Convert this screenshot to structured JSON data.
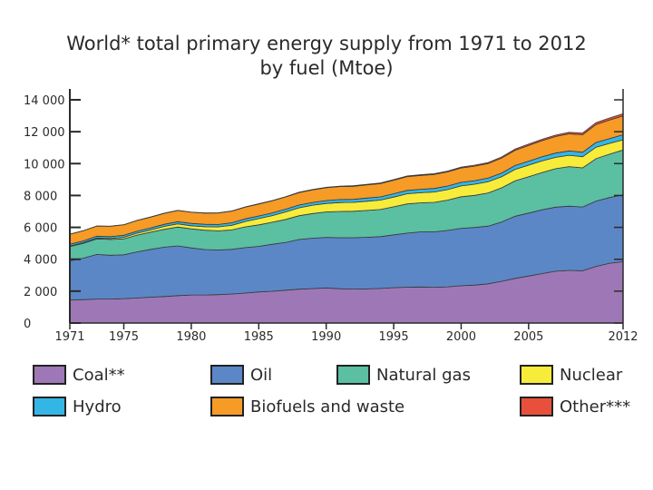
{
  "chart_data": {
    "type": "area",
    "stacked": true,
    "title_line1": "World* total primary energy supply from 1971 to 2012",
    "title_line2": "by fuel (Mtoe)",
    "xlabel": "",
    "ylabel": "",
    "xlim": [
      1971,
      2012
    ],
    "ylim": [
      0,
      14000
    ],
    "grid": false,
    "legend_position": "bottom",
    "y_ticks": [
      {
        "value": 0,
        "label": "0"
      },
      {
        "value": 2000,
        "label": "2 000"
      },
      {
        "value": 4000,
        "label": "4 000"
      },
      {
        "value": 6000,
        "label": "6 000"
      },
      {
        "value": 8000,
        "label": "8 000"
      },
      {
        "value": 10000,
        "label": "10 000"
      },
      {
        "value": 12000,
        "label": "12 000"
      },
      {
        "value": 14000,
        "label": "14 000"
      }
    ],
    "x_ticks": [
      {
        "value": 1971,
        "label": "1971"
      },
      {
        "value": 1975,
        "label": "1975"
      },
      {
        "value": 1980,
        "label": "1980"
      },
      {
        "value": 1985,
        "label": "1985"
      },
      {
        "value": 1990,
        "label": "1990"
      },
      {
        "value": 1995,
        "label": "1995"
      },
      {
        "value": 2000,
        "label": "2000"
      },
      {
        "value": 2005,
        "label": "2005"
      },
      {
        "value": 2012,
        "label": "2012"
      }
    ],
    "x": [
      1971,
      1972,
      1973,
      1974,
      1975,
      1976,
      1977,
      1978,
      1979,
      1980,
      1981,
      1982,
      1983,
      1984,
      1985,
      1986,
      1987,
      1988,
      1989,
      1990,
      1991,
      1992,
      1993,
      1994,
      1995,
      1996,
      1997,
      1998,
      1999,
      2000,
      2001,
      2002,
      2003,
      2004,
      2005,
      2006,
      2007,
      2008,
      2009,
      2010,
      2011,
      2012
    ],
    "series": [
      {
        "name": "Coal**",
        "color": "#9e78b6",
        "values": [
          1450,
          1470,
          1500,
          1500,
          1530,
          1570,
          1620,
          1660,
          1720,
          1760,
          1760,
          1780,
          1820,
          1880,
          1950,
          1990,
          2060,
          2120,
          2160,
          2200,
          2150,
          2130,
          2140,
          2170,
          2220,
          2250,
          2260,
          2240,
          2270,
          2340,
          2380,
          2460,
          2620,
          2800,
          2950,
          3100,
          3250,
          3300,
          3280,
          3550,
          3750,
          3850
        ]
      },
      {
        "name": "Oil",
        "color": "#5b87c7",
        "values": [
          2450,
          2600,
          2800,
          2750,
          2750,
          2900,
          3000,
          3100,
          3120,
          2950,
          2850,
          2800,
          2800,
          2850,
          2860,
          2950,
          3000,
          3120,
          3160,
          3170,
          3200,
          3220,
          3240,
          3250,
          3310,
          3390,
          3460,
          3480,
          3540,
          3600,
          3610,
          3620,
          3720,
          3900,
          3950,
          4000,
          4020,
          4030,
          4000,
          4100,
          4120,
          4200
        ]
      },
      {
        "name": "Natural gas",
        "color": "#5bbfa2",
        "values": [
          900,
          930,
          980,
          990,
          1000,
          1050,
          1080,
          1120,
          1180,
          1200,
          1210,
          1200,
          1220,
          1300,
          1350,
          1380,
          1440,
          1490,
          1550,
          1600,
          1650,
          1660,
          1680,
          1700,
          1760,
          1830,
          1820,
          1850,
          1900,
          1980,
          2020,
          2080,
          2140,
          2220,
          2280,
          2340,
          2410,
          2480,
          2450,
          2660,
          2720,
          2800
        ]
      },
      {
        "name": "Nuclear",
        "color": "#f7ec3a",
        "values": [
          30,
          40,
          50,
          60,
          100,
          120,
          140,
          180,
          200,
          190,
          220,
          250,
          290,
          340,
          390,
          420,
          470,
          500,
          520,
          530,
          560,
          560,
          580,
          590,
          610,
          640,
          630,
          650,
          660,
          680,
          700,
          700,
          700,
          720,
          720,
          730,
          710,
          710,
          700,
          720,
          680,
          640
        ]
      },
      {
        "name": "Hydro",
        "color": "#33b6e6",
        "values": [
          110,
          112,
          114,
          118,
          122,
          125,
          128,
          132,
          138,
          147,
          150,
          153,
          157,
          162,
          166,
          168,
          170,
          173,
          176,
          184,
          188,
          189,
          195,
          198,
          210,
          213,
          218,
          220,
          223,
          225,
          222,
          226,
          225,
          237,
          251,
          258,
          268,
          275,
          278,
          293,
          300,
          320
        ]
      },
      {
        "name": "Biofuels and waste",
        "color": "#f59b26",
        "values": [
          630,
          635,
          640,
          650,
          660,
          670,
          680,
          690,
          700,
          700,
          710,
          720,
          730,
          740,
          750,
          760,
          770,
          780,
          790,
          800,
          810,
          820,
          830,
          840,
          850,
          860,
          870,
          880,
          890,
          900,
          910,
          920,
          940,
          960,
          990,
          1010,
          1040,
          1070,
          1100,
          1130,
          1160,
          1180
        ]
      },
      {
        "name": "Other***",
        "color": "#e8503c",
        "values": [
          6,
          6,
          6,
          6,
          7,
          7,
          8,
          8,
          9,
          10,
          11,
          12,
          13,
          14,
          15,
          17,
          19,
          21,
          24,
          28,
          30,
          33,
          35,
          38,
          40,
          43,
          46,
          50,
          52,
          55,
          60,
          64,
          70,
          75,
          80,
          85,
          90,
          100,
          110,
          120,
          130,
          140
        ]
      }
    ]
  },
  "legend": {
    "items": [
      {
        "label": "Coal**",
        "color": "#9e78b6"
      },
      {
        "label": "Oil",
        "color": "#5b87c7"
      },
      {
        "label": "Natural gas",
        "color": "#5bbfa2"
      },
      {
        "label": "Nuclear",
        "color": "#f7ec3a"
      },
      {
        "label": "Hydro",
        "color": "#33b6e6"
      },
      {
        "label": "Biofuels and waste",
        "color": "#f59b26"
      },
      {
        "label": "Other***",
        "color": "#e8503c"
      }
    ]
  }
}
